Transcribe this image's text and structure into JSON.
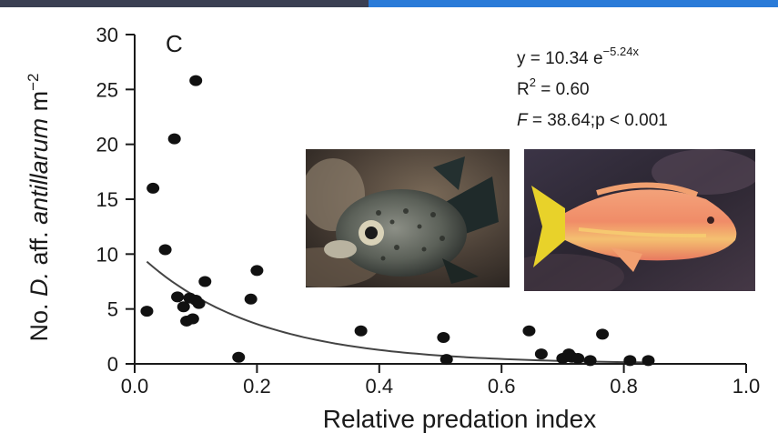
{
  "chart_data": {
    "type": "scatter",
    "panel_label": "C",
    "xlabel": "Relative predation index",
    "ylabel": {
      "prefix": "No. ",
      "genus": "D.",
      "mid": " aff. ",
      "species": "antillarum",
      "unit": " m",
      "exponent": "−2"
    },
    "xlim": [
      0.0,
      1.0
    ],
    "ylim": [
      0,
      30
    ],
    "x_ticks": [
      "0.0",
      "0.2",
      "0.4",
      "0.6",
      "0.8",
      "1.0"
    ],
    "y_ticks": [
      "0",
      "5",
      "10",
      "15",
      "20",
      "25",
      "30"
    ],
    "grid": false,
    "fit": {
      "equation_lhs": "y = 10.34 e",
      "equation_exp": "−5.24x",
      "r2_label": "R",
      "r2_sup": "2",
      "r2_value": " = 0.60",
      "f_label": "F",
      "f_value": " = 38.64;p < 0.001",
      "a": 10.34,
      "b": -5.24,
      "x_range": [
        0.02,
        0.84
      ]
    },
    "points": [
      {
        "x": 0.02,
        "y": 4.8
      },
      {
        "x": 0.03,
        "y": 16.0
      },
      {
        "x": 0.05,
        "y": 10.4
      },
      {
        "x": 0.065,
        "y": 20.5
      },
      {
        "x": 0.07,
        "y": 6.1
      },
      {
        "x": 0.08,
        "y": 5.2
      },
      {
        "x": 0.085,
        "y": 3.9
      },
      {
        "x": 0.09,
        "y": 6.0
      },
      {
        "x": 0.095,
        "y": 4.1
      },
      {
        "x": 0.1,
        "y": 5.8
      },
      {
        "x": 0.1,
        "y": 25.8
      },
      {
        "x": 0.105,
        "y": 5.5
      },
      {
        "x": 0.115,
        "y": 7.5
      },
      {
        "x": 0.17,
        "y": 0.6
      },
      {
        "x": 0.19,
        "y": 5.9
      },
      {
        "x": 0.2,
        "y": 8.5
      },
      {
        "x": 0.37,
        "y": 3.0
      },
      {
        "x": 0.505,
        "y": 2.4
      },
      {
        "x": 0.51,
        "y": 0.4
      },
      {
        "x": 0.645,
        "y": 3.0
      },
      {
        "x": 0.665,
        "y": 0.9
      },
      {
        "x": 0.7,
        "y": 0.5
      },
      {
        "x": 0.71,
        "y": 0.9
      },
      {
        "x": 0.715,
        "y": 0.6
      },
      {
        "x": 0.725,
        "y": 0.5
      },
      {
        "x": 0.745,
        "y": 0.3
      },
      {
        "x": 0.765,
        "y": 2.7
      },
      {
        "x": 0.81,
        "y": 0.3
      },
      {
        "x": 0.84,
        "y": 0.3
      }
    ]
  },
  "photos": [
    {
      "subject": "porcupinefish-photo"
    },
    {
      "subject": "hogfish-photo"
    }
  ]
}
